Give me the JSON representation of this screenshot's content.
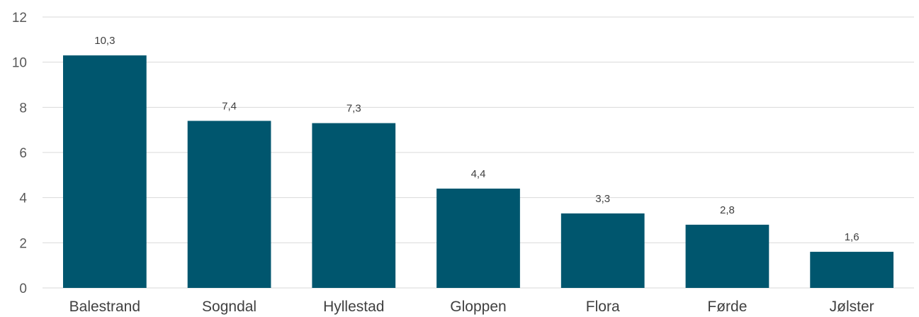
{
  "chart_data": {
    "type": "bar",
    "categories": [
      "Balestrand",
      "Sogndal",
      "Hyllestad",
      "Gloppen",
      "Flora",
      "Førde",
      "Jølster"
    ],
    "values": [
      10.3,
      7.4,
      7.3,
      4.4,
      3.3,
      2.8,
      1.6
    ],
    "data_labels": [
      "10,3",
      "7,4",
      "7,3",
      "4,4",
      "3,3",
      "2,8",
      "1,6"
    ],
    "y_ticks": [
      0,
      2,
      4,
      6,
      8,
      10,
      12
    ],
    "y_tick_labels": [
      "0",
      "2",
      "4",
      "6",
      "8",
      "10",
      "12"
    ],
    "ylim": [
      0,
      12
    ],
    "grid": true,
    "legend": "none",
    "colors": {
      "bar": "#00566E",
      "grid": "#D9D9D9"
    }
  }
}
